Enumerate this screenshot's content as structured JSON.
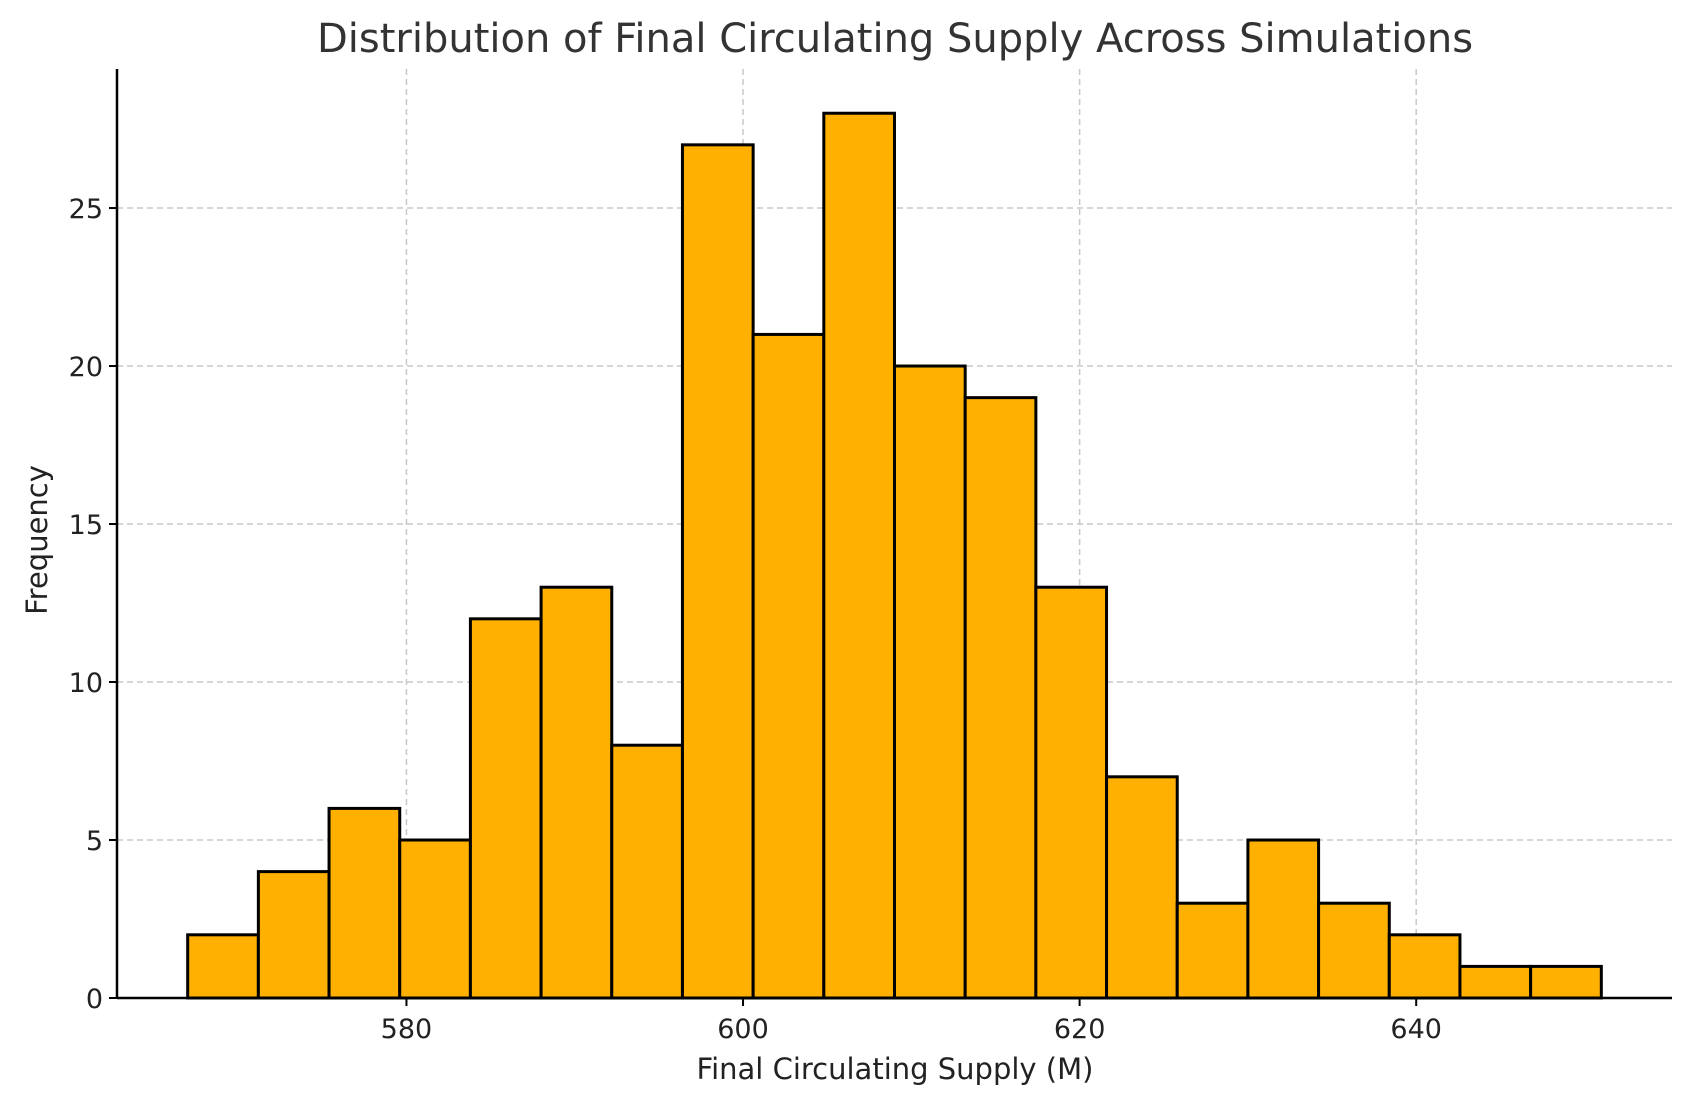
{
  "chart_data": {
    "type": "bar",
    "title": "Distribution of Final Circulating Supply Across Simulations",
    "xlabel": "Final Circulating Supply (M)",
    "ylabel": "Frequency",
    "bin_edges": [
      567.0,
      571.2,
      575.4,
      579.6,
      583.8,
      588.0,
      592.2,
      596.4,
      600.6,
      604.8,
      609.0,
      613.2,
      617.4,
      621.6,
      625.8,
      630.0,
      634.2,
      638.4,
      642.6,
      646.8,
      651.0
    ],
    "values": [
      2,
      4,
      6,
      5,
      12,
      13,
      8,
      27,
      21,
      28,
      20,
      19,
      13,
      7,
      3,
      5,
      3,
      2,
      1,
      1
    ],
    "xlim": [
      562.8,
      655.2
    ],
    "ylim": [
      0,
      29.4
    ],
    "xticks": [
      580,
      600,
      620,
      640
    ],
    "yticks": [
      0,
      5,
      10,
      15,
      20,
      25
    ],
    "grid": true,
    "bar_color": "#FFB000",
    "edge_color": "#000000"
  }
}
